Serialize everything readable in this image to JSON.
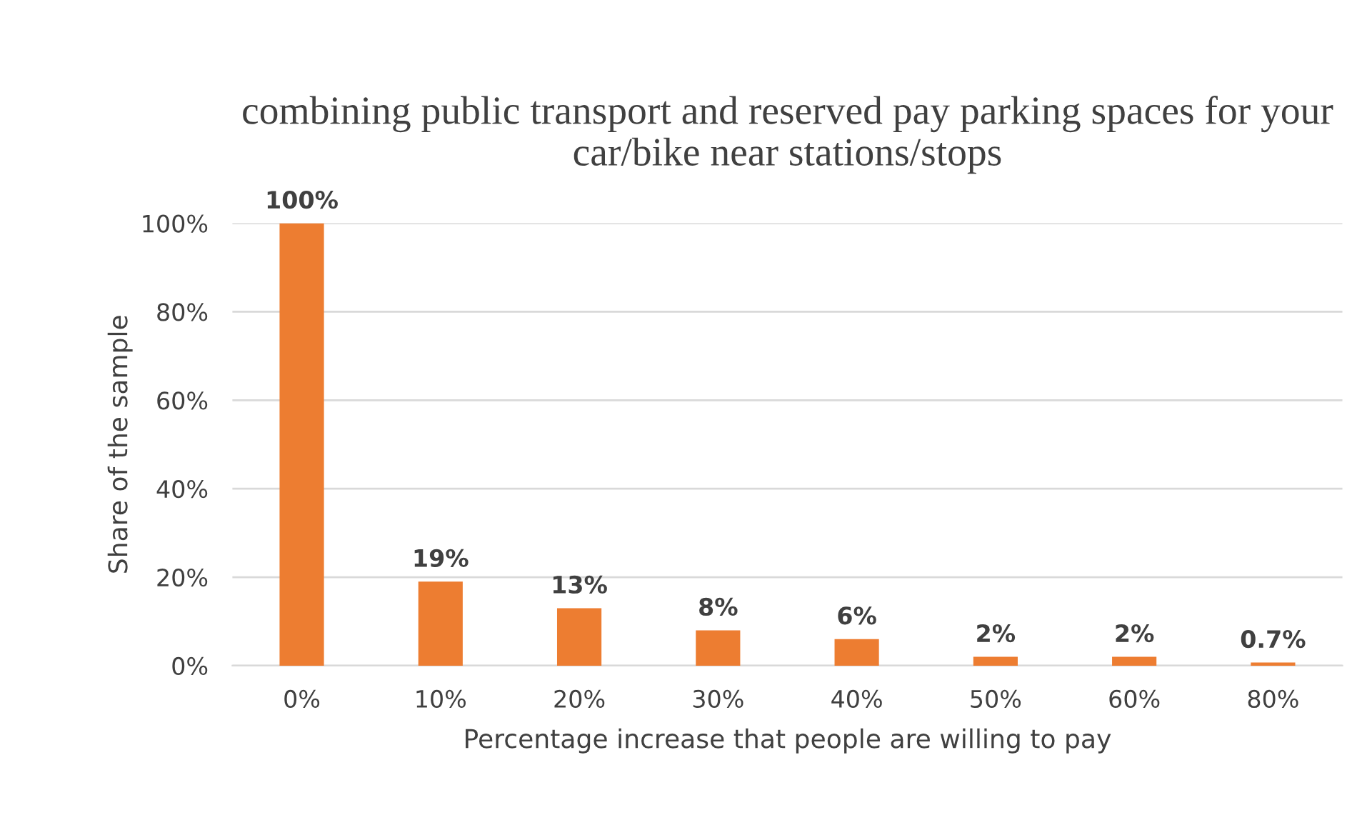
{
  "chart_data": {
    "type": "bar",
    "title": "combining public transport and reserved pay parking spaces for your car/bike near stations/stops",
    "xlabel": "Percentage increase that people are willing to pay",
    "ylabel": "Share of the sample",
    "categories": [
      "0%",
      "10%",
      "20%",
      "30%",
      "40%",
      "50%",
      "60%",
      "80%"
    ],
    "values": [
      100,
      19,
      13,
      8,
      6,
      2,
      2,
      0.7
    ],
    "value_labels": [
      "100%",
      "19%",
      "13%",
      "8%",
      "6%",
      "2%",
      "2%",
      "0.7%"
    ],
    "color": "#ed7d31",
    "ylim": [
      0,
      100
    ],
    "yticks": [
      {
        "value": 0,
        "label": "0%"
      },
      {
        "value": 20,
        "label": "20%"
      },
      {
        "value": 40,
        "label": "40%"
      },
      {
        "value": 60,
        "label": "60%"
      },
      {
        "value": 80,
        "label": "80%"
      },
      {
        "value": 100,
        "label": "100%"
      }
    ],
    "grid": "y",
    "legend": false
  }
}
